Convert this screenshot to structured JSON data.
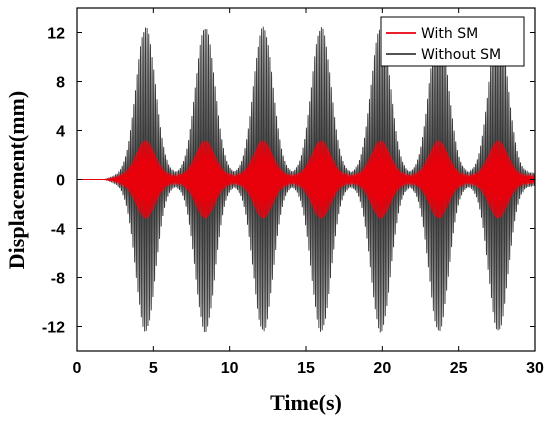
{
  "chart_data": {
    "type": "line",
    "xlabel": "Time(s)",
    "ylabel": "Displacement(mm)",
    "xlim": [
      0,
      30
    ],
    "ylim": [
      -14,
      14
    ],
    "xticks": [
      0,
      5,
      10,
      15,
      20,
      25,
      30
    ],
    "xtick_labels": [
      "0",
      "5",
      "10",
      "15",
      "20",
      "25",
      "30"
    ],
    "yticks": [
      -12,
      -8,
      -4,
      0,
      4,
      8,
      12
    ],
    "ytick_labels": [
      "-12",
      "-8",
      "-4",
      "0",
      "4",
      "8",
      "12"
    ],
    "grid": false,
    "legend_position": "top-right",
    "series": [
      {
        "name": "With SM",
        "color": "#e8000b",
        "envelope_peak_times": [
          4.5,
          8.4,
          12.2,
          16.0,
          19.9,
          23.7,
          27.6
        ],
        "peak_amplitude": 3.2,
        "trough_amplitude": 0.3
      },
      {
        "name": "Without SM",
        "color": "#3a3a3a",
        "envelope_peak_times": [
          4.5,
          8.4,
          12.2,
          16.0,
          19.9,
          23.7,
          27.6
        ],
        "peak_amplitude": 12.5,
        "trough_amplitude": 0.5
      }
    ],
    "signal_start_time": 1.8
  }
}
